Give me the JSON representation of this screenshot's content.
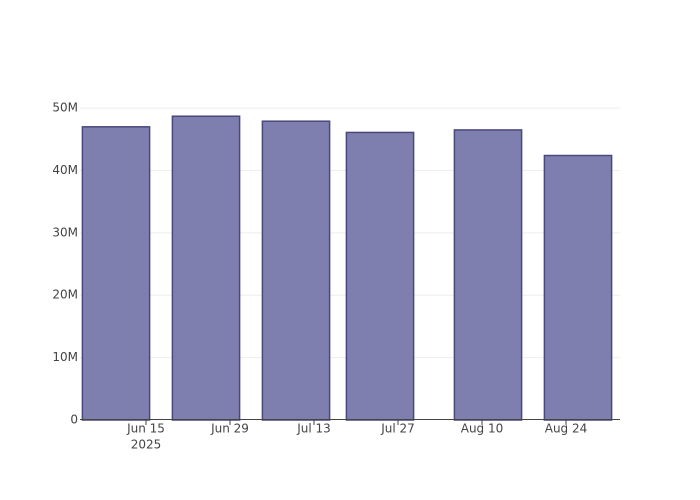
{
  "chart_data": {
    "type": "bar",
    "x": [
      "2025-06-10",
      "2025-06-25",
      "2025-07-10",
      "2025-07-24",
      "2025-08-11",
      "2025-08-26"
    ],
    "values": [
      47000000,
      48700000,
      47900000,
      46100000,
      46500000,
      42400000
    ],
    "color": "#7f7faf",
    "edge_color": "#48487d",
    "xlim": [
      "2025-06-04",
      "2025-09-02"
    ],
    "xticks": [
      {
        "value": "2025-06-15",
        "label": "Jun 15"
      },
      {
        "value": "2025-06-29",
        "label": "Jun 29"
      },
      {
        "value": "2025-07-13",
        "label": "Jul 13"
      },
      {
        "value": "2025-07-27",
        "label": "Jul 27"
      },
      {
        "value": "2025-08-10",
        "label": "Aug 10"
      },
      {
        "value": "2025-08-24",
        "label": "Aug 24"
      }
    ],
    "x_year_label": "2025",
    "ylim": [
      0,
      51300000
    ],
    "yticks": [
      0,
      {
        "value": 10000000,
        "label": "10M"
      },
      {
        "value": 20000000,
        "label": "20M"
      },
      {
        "value": 30000000,
        "label": "30M"
      },
      {
        "value": 40000000,
        "label": "40M"
      },
      {
        "value": 50000000,
        "label": "50M"
      }
    ],
    "grid": true
  }
}
